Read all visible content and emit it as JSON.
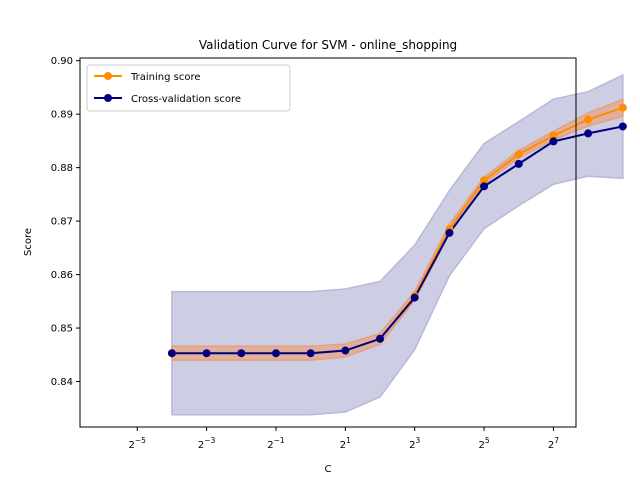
{
  "chart_data": {
    "type": "line",
    "title": "Validation Curve for SVM - online_shopping",
    "xlabel": "C",
    "ylabel": "Score",
    "x_scale": "log2",
    "x": [
      0.0625,
      0.125,
      0.25,
      0.5,
      1,
      2,
      4,
      8,
      16,
      32,
      64,
      128,
      256,
      512
    ],
    "x_tick_exponents": [
      -5,
      -3,
      -1,
      1,
      3,
      5,
      7
    ],
    "x_tick_base": "2",
    "xlim_exp": [
      -6.65,
      7.65
    ],
    "ylim": [
      0.8315,
      0.9005
    ],
    "y_ticks": [
      "0.84",
      "0.85",
      "0.86",
      "0.87",
      "0.88",
      "0.89",
      "0.90"
    ],
    "grid": false,
    "legend_position": "upper-left",
    "series": [
      {
        "name": "Training score",
        "color": "#ff8c00",
        "values": [
          0.8453,
          0.8453,
          0.8453,
          0.8453,
          0.8453,
          0.8458,
          0.848,
          0.856,
          0.8685,
          0.8776,
          0.8825,
          0.886,
          0.889,
          0.8912
        ],
        "band_lower": [
          0.844,
          0.844,
          0.844,
          0.844,
          0.844,
          0.8446,
          0.847,
          0.8552,
          0.8676,
          0.877,
          0.8818,
          0.8852,
          0.8878,
          0.8896
        ],
        "band_upper": [
          0.8466,
          0.8466,
          0.8466,
          0.8466,
          0.8466,
          0.847,
          0.849,
          0.8568,
          0.8694,
          0.8782,
          0.8832,
          0.8868,
          0.8902,
          0.8928
        ],
        "band_color": "#e8a07a"
      },
      {
        "name": "Cross-validation score",
        "color": "#000080",
        "values": [
          0.8453,
          0.8453,
          0.8453,
          0.8453,
          0.8453,
          0.8458,
          0.848,
          0.8557,
          0.8678,
          0.8765,
          0.8807,
          0.8849,
          0.8864,
          0.8877
        ],
        "band_lower": [
          0.8338,
          0.8338,
          0.8338,
          0.8338,
          0.8338,
          0.8343,
          0.8371,
          0.846,
          0.8598,
          0.8686,
          0.8729,
          0.8769,
          0.8784,
          0.878
        ],
        "band_upper": [
          0.8568,
          0.8568,
          0.8568,
          0.8568,
          0.8568,
          0.8573,
          0.8587,
          0.8655,
          0.8757,
          0.8845,
          0.8886,
          0.8928,
          0.8942,
          0.8973
        ],
        "band_color": "#b8b8d8"
      }
    ]
  }
}
